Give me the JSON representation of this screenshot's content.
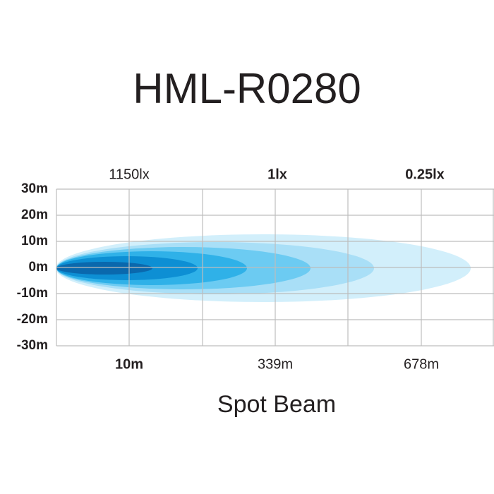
{
  "title": "HML-R0280",
  "illuminance_labels": [
    "1150lx",
    "1lx",
    "0.25lx"
  ],
  "y_labels": [
    "30m",
    "20m",
    "10m",
    "0m",
    "-10m",
    "-20m",
    "-30m"
  ],
  "distance_labels": [
    "10m",
    "339m",
    "678m"
  ],
  "caption": "Spot Beam"
}
